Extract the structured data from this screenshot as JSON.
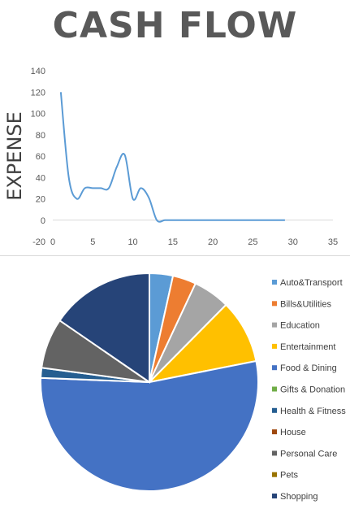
{
  "title": "CASH FLOW",
  "chart_data": [
    {
      "type": "line",
      "title": "",
      "xlabel": "",
      "ylabel": "EXPENSE",
      "xlim": [
        0,
        35
      ],
      "ylim": [
        -20,
        140
      ],
      "xticks": [
        0,
        5,
        10,
        15,
        20,
        25,
        30,
        35
      ],
      "yticks": [
        -20,
        0,
        20,
        40,
        60,
        80,
        100,
        120,
        140
      ],
      "grid": false,
      "color": "#5B9BD5",
      "x": [
        1,
        2,
        3,
        4,
        5,
        6,
        7,
        8,
        9,
        10,
        11,
        12,
        13,
        14,
        15,
        16,
        17,
        18,
        19,
        20,
        21,
        22,
        23,
        24,
        25,
        26,
        27,
        28,
        29
      ],
      "y": [
        120,
        40,
        20,
        30,
        30,
        30,
        30,
        50,
        61,
        20,
        30,
        21,
        0,
        0,
        0,
        0,
        0,
        0,
        0,
        0,
        0,
        0,
        0,
        0,
        0,
        0,
        0,
        0,
        0
      ]
    },
    {
      "type": "pie",
      "categories": [
        "Auto&Transport",
        "Bills&Utilities",
        "Education",
        "Entertainment",
        "Food & Dining",
        "Gifts & Donation",
        "Health & Fitness",
        "House",
        "Personal Care",
        "Pets",
        "Shopping"
      ],
      "values": [
        3.5,
        3.5,
        5.5,
        9.5,
        54,
        0,
        1.5,
        0,
        7.5,
        0,
        15.5
      ],
      "colors": [
        "#5B9BD5",
        "#ED7D31",
        "#A5A5A5",
        "#FFC000",
        "#4472C4",
        "#70AD47",
        "#255E91",
        "#9E480E",
        "#636363",
        "#997300",
        "#264478"
      ],
      "legend_position": "right"
    }
  ]
}
